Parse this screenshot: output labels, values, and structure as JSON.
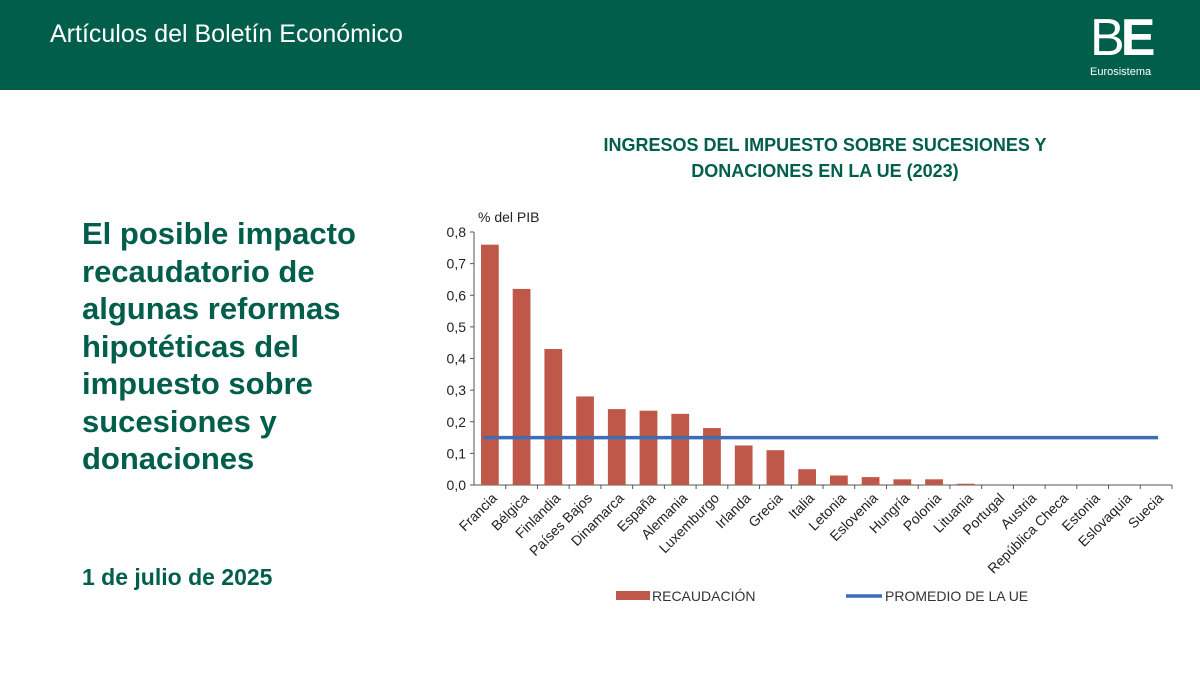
{
  "header": {
    "title": "Artículos del Boletín Económico",
    "logo_text_light": "B",
    "logo_text_bold": "E",
    "logo_subtitle": "Eurosistema",
    "background_color": "#005e4b"
  },
  "article": {
    "title": "El posible impacto recaudatorio de algunas reformas hipotéticas del impuesto sobre sucesiones y donaciones",
    "date": "1 de julio de 2025",
    "accent_color": "#005e4b"
  },
  "chart_data": {
    "type": "bar",
    "title_line1": "INGRESOS DEL IMPUESTO SOBRE SUCESIONES Y",
    "title_line2": "DONACIONES EN LA UE (2023)",
    "ylabel": "% del PIB",
    "ylim": [
      0,
      0.8
    ],
    "yticks": [
      "0,0",
      "0,1",
      "0,2",
      "0,3",
      "0,4",
      "0,5",
      "0,6",
      "0,7",
      "0,8"
    ],
    "categories": [
      "Francia",
      "Bélgica",
      "Finlandia",
      "Países Bajos",
      "Dinamarca",
      "España",
      "Alemania",
      "Luxemburgo",
      "Irlanda",
      "Grecia",
      "Italia",
      "Letonia",
      "Eslovenia",
      "Hungría",
      "Polonia",
      "Lituania",
      "Portugal",
      "Austria",
      "República Checa",
      "Estonia",
      "Eslovaquia",
      "Suecia"
    ],
    "series": [
      {
        "name": "RECAUDACIÓN",
        "type": "bar",
        "color": "#c0584a",
        "values": [
          0.76,
          0.62,
          0.43,
          0.28,
          0.24,
          0.235,
          0.225,
          0.18,
          0.125,
          0.11,
          0.05,
          0.03,
          0.025,
          0.018,
          0.018,
          0.004,
          0,
          0,
          0,
          0,
          0,
          0
        ]
      },
      {
        "name": "PROMEDIO DE LA UE",
        "type": "line",
        "color": "#3d6db5",
        "value": 0.15
      }
    ],
    "grid": false,
    "legend_position": "bottom"
  }
}
